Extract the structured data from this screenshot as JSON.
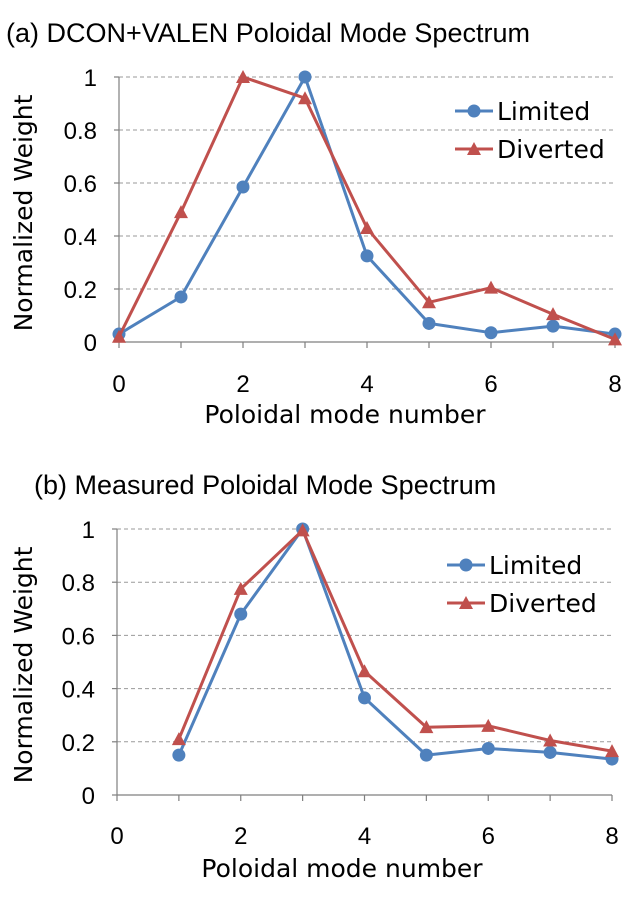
{
  "colors": {
    "limited": "#4F81BD",
    "diverted": "#C0504D"
  },
  "chart_data": [
    {
      "type": "line",
      "title": "(a) DCON+VALEN Poloidal Mode Spectrum",
      "xlabel": "Poloidal mode number",
      "ylabel": "Normalized Weight",
      "xlim": [
        0,
        8
      ],
      "ylim": [
        0,
        1
      ],
      "xticks": [
        0,
        2,
        4,
        6,
        8
      ],
      "yticks": [
        0,
        0.2,
        0.4,
        0.6,
        0.8,
        1
      ],
      "ytick_labels": [
        "0",
        "0.2",
        "0.4",
        "0.6",
        "0.8",
        "1"
      ],
      "grid": true,
      "legend_position": "top-right",
      "series": [
        {
          "name": "Limited",
          "marker": "circle",
          "x": [
            0,
            1,
            2,
            3,
            4,
            5,
            6,
            7,
            8
          ],
          "y": [
            0.03,
            0.17,
            0.585,
            1.0,
            0.325,
            0.07,
            0.035,
            0.06,
            0.03
          ]
        },
        {
          "name": "Diverted",
          "marker": "triangle",
          "x": [
            0,
            1,
            2,
            3,
            4,
            5,
            6,
            7,
            8
          ],
          "y": [
            0.02,
            0.49,
            1.0,
            0.92,
            0.43,
            0.15,
            0.205,
            0.105,
            0.01
          ]
        }
      ]
    },
    {
      "type": "line",
      "title": "(b) Measured Poloidal Mode Spectrum",
      "xlabel": "Poloidal mode number",
      "ylabel": "Normalized Weight",
      "xlim": [
        0,
        8
      ],
      "ylim": [
        0,
        1
      ],
      "xticks": [
        0,
        2,
        4,
        6,
        8
      ],
      "yticks": [
        0,
        0.2,
        0.4,
        0.6,
        0.8,
        1
      ],
      "ytick_labels": [
        "0",
        "0.2",
        "0.4",
        "0.6",
        "0.8",
        "1"
      ],
      "grid": true,
      "legend_position": "top-right",
      "series": [
        {
          "name": "Limited",
          "marker": "circle",
          "x": [
            1,
            2,
            3,
            4,
            5,
            6,
            7,
            8
          ],
          "y": [
            0.15,
            0.68,
            1.0,
            0.365,
            0.15,
            0.175,
            0.16,
            0.135
          ]
        },
        {
          "name": "Diverted",
          "marker": "triangle",
          "x": [
            1,
            2,
            3,
            4,
            5,
            6,
            7,
            8
          ],
          "y": [
            0.21,
            0.775,
            0.995,
            0.465,
            0.255,
            0.26,
            0.205,
            0.165
          ]
        }
      ]
    }
  ]
}
